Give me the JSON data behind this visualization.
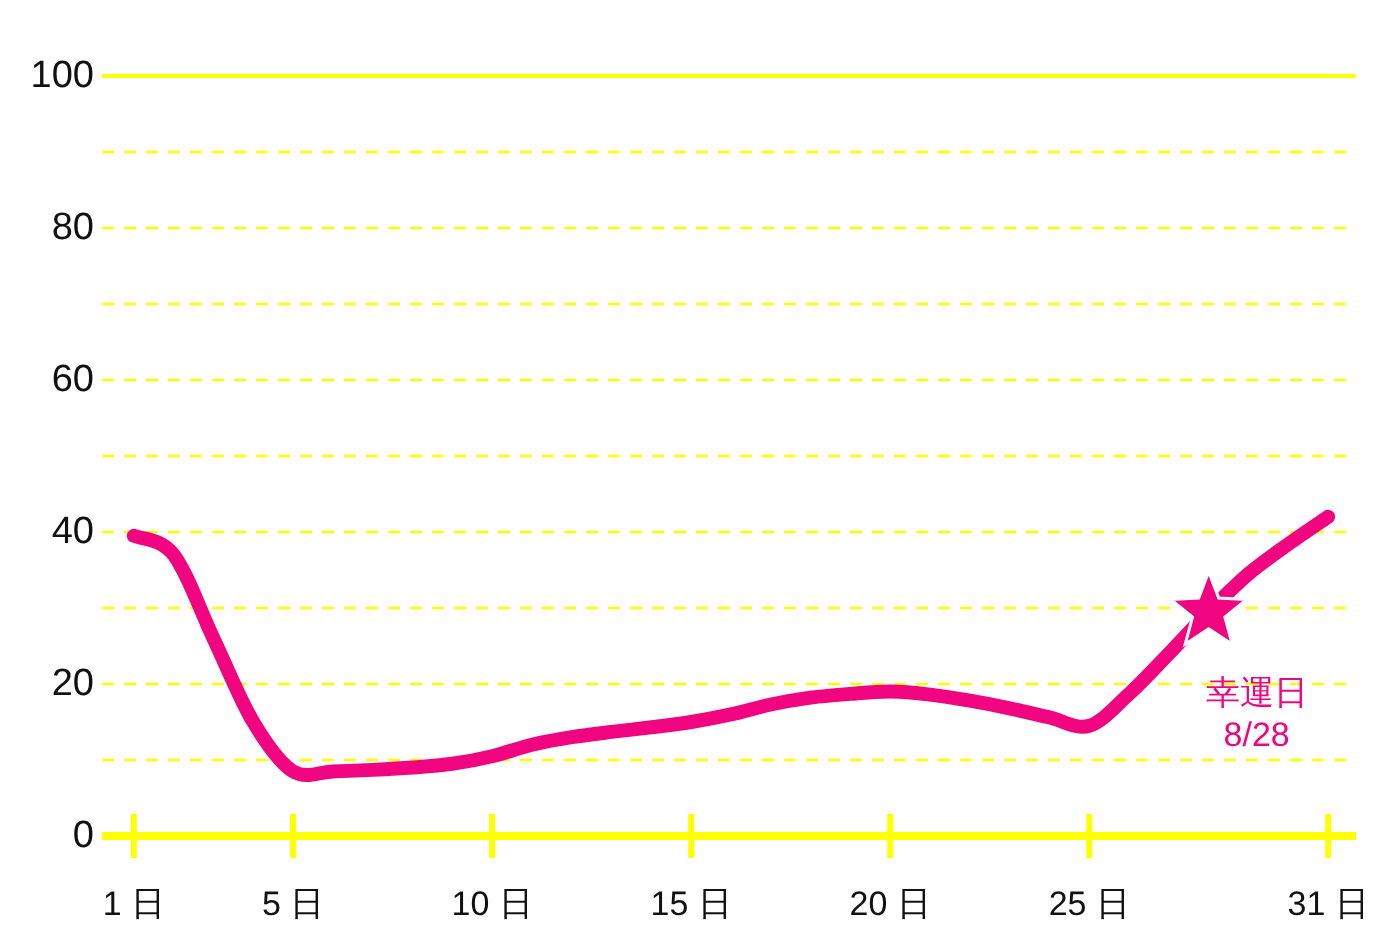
{
  "chart_data": {
    "type": "line",
    "x": [
      1,
      2,
      3,
      4,
      5,
      6,
      7,
      8,
      9,
      10,
      11,
      12,
      13,
      14,
      15,
      16,
      17,
      18,
      19,
      20,
      21,
      22,
      23,
      24,
      25,
      26,
      27,
      28,
      29,
      30,
      31
    ],
    "series": [
      {
        "color": "#f0047f",
        "marker": "none",
        "line_style": "solid",
        "values": [
          39.5,
          37,
          26,
          15,
          8.5,
          8.5,
          8.7,
          9,
          9.5,
          10.5,
          12,
          13,
          13.7,
          14.3,
          15,
          16,
          17.3,
          18.2,
          18.7,
          19,
          18.6,
          17.8,
          16.8,
          15.6,
          14.5,
          18.7,
          24,
          29.5,
          34.5,
          38.4,
          42
        ]
      },
      {
        "type": "scatter",
        "color": "#f0047f",
        "marker": "star",
        "x": [
          28
        ],
        "values": [
          29.5
        ]
      }
    ],
    "xlim": [
      0.2,
      31.7
    ],
    "ylim": [
      0,
      100
    ],
    "xticks": [
      {
        "value": 1,
        "label": "1 日"
      },
      {
        "value": 5,
        "label": "5 日"
      },
      {
        "value": 10,
        "label": "10 日"
      },
      {
        "value": 15,
        "label": "15 日"
      },
      {
        "value": 20,
        "label": "20 日"
      },
      {
        "value": 25,
        "label": "25 日"
      },
      {
        "value": 31,
        "label": "31 日"
      }
    ],
    "yticks": [
      0,
      {
        "value": 10,
        "label": null
      },
      20,
      {
        "value": 30,
        "label": null
      },
      40,
      {
        "value": 50,
        "label": null
      },
      60,
      {
        "value": 70,
        "label": null
      },
      80,
      {
        "value": 90,
        "label": null
      },
      100
    ],
    "grid": "y",
    "annotations": [
      {
        "text": "幸運日\n8/28",
        "x": 28,
        "y": 29.5
      }
    ]
  }
}
